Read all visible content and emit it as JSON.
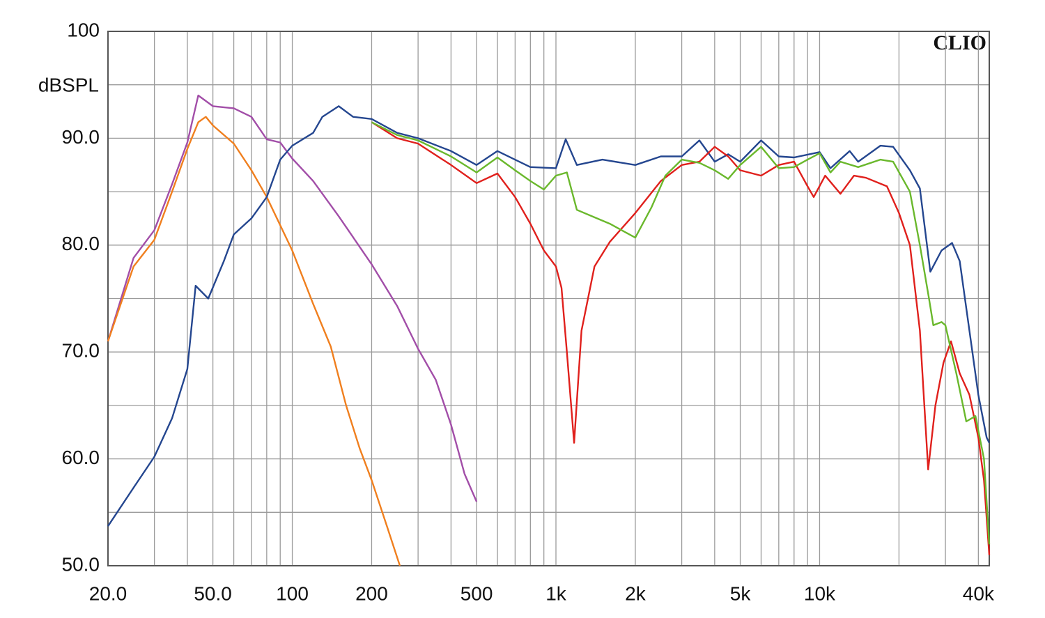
{
  "chart_data": {
    "type": "line",
    "y_label": "dBSPL",
    "watermark": "CLIO",
    "xscale": "log",
    "grid": true,
    "xlim": [
      20,
      44000
    ],
    "ylim": [
      50,
      100
    ],
    "xticks": [
      {
        "value": 20,
        "label": "20.0"
      },
      {
        "value": 50,
        "label": "50.0"
      },
      100,
      200,
      500,
      {
        "value": 1000,
        "label": "1k"
      },
      {
        "value": 2000,
        "label": "2k"
      },
      {
        "value": 5000,
        "label": "5k"
      },
      {
        "value": 10000,
        "label": "10k"
      },
      {
        "value": 40000,
        "label": "40k"
      }
    ],
    "yticks": [
      {
        "value": 50,
        "label": "50.0"
      },
      {
        "value": 60,
        "label": "60.0"
      },
      {
        "value": 70,
        "label": "70.0"
      },
      {
        "value": 80,
        "label": "80.0"
      },
      {
        "value": 90,
        "label": "90.0"
      },
      100
    ],
    "xgrid_minor": [
      30,
      40,
      60,
      70,
      80,
      90,
      300,
      400,
      600,
      700,
      800,
      900,
      3000,
      4000,
      6000,
      7000,
      8000,
      9000,
      20000,
      30000
    ],
    "ygrid_minor": [
      55,
      65,
      75,
      85,
      95
    ],
    "series": [
      {
        "color": "#a24ea8",
        "x": [
          20,
          25,
          30,
          35,
          40,
          44,
          50,
          60,
          70,
          80,
          90,
          100,
          120,
          150,
          200,
          250,
          300,
          350,
          400,
          450,
          500
        ],
        "values": [
          71,
          78.8,
          81.4,
          85.7,
          89.6,
          94.0,
          93.0,
          92.8,
          92.0,
          89.9,
          89.6,
          88.1,
          86.0,
          82.7,
          78.2,
          74.3,
          70.3,
          67.4,
          63.2,
          58.6,
          56.0
        ]
      },
      {
        "color": "#f07f1e",
        "x": [
          20,
          25,
          30,
          35,
          40,
          44,
          47,
          50,
          60,
          70,
          80,
          100,
          120,
          140,
          160,
          180,
          200,
          230,
          256
        ],
        "values": [
          71,
          78,
          80.5,
          85,
          89,
          91.5,
          92.0,
          91.2,
          89.5,
          87,
          84.5,
          79.5,
          74.5,
          70.5,
          65,
          61,
          58,
          53.5,
          50
        ]
      },
      {
        "color": "#24468f",
        "x": [
          20,
          25,
          30,
          35,
          40,
          43,
          48,
          55,
          60,
          70,
          80,
          90,
          100,
          120,
          130,
          150,
          170,
          200,
          250,
          300,
          400,
          500,
          600,
          800,
          1000,
          1089,
          1200,
          1500,
          2000,
          2500,
          3000,
          3500,
          4000,
          4500,
          5000,
          6000,
          7000,
          8000,
          10000,
          11000,
          13000,
          14000,
          17000,
          19000,
          22000,
          24000,
          26300,
          29000,
          31800,
          34000,
          37000,
          40000,
          43000,
          44000
        ],
        "values": [
          53.7,
          57.3,
          60.2,
          63.8,
          68.4,
          76.2,
          75.0,
          78.5,
          81.0,
          82.5,
          84.5,
          88,
          89.3,
          90.5,
          92,
          93.0,
          92.0,
          91.8,
          90.5,
          90.0,
          88.8,
          87.5,
          88.8,
          87.3,
          87.2,
          89.9,
          87.5,
          88.0,
          87.5,
          88.3,
          88.3,
          89.8,
          87.8,
          88.5,
          87.8,
          89.8,
          88.3,
          88.2,
          88.7,
          87.2,
          88.8,
          87.8,
          89.3,
          89.2,
          87,
          85.3,
          77.5,
          79.5,
          80.2,
          78.5,
          72,
          66,
          62,
          61.5
        ]
      },
      {
        "color": "#e0201c",
        "x": [
          200,
          250,
          300,
          400,
          500,
          600,
          700,
          800,
          900,
          1000,
          1050,
          1100,
          1172,
          1250,
          1400,
          1600,
          2000,
          2500,
          3000,
          3500,
          4000,
          4500,
          5000,
          6000,
          7000,
          8000,
          9000,
          9500,
          10500,
          12000,
          13500,
          15000,
          18000,
          20000,
          22000,
          24000,
          25800,
          27500,
          29500,
          31500,
          34000,
          37000,
          40000,
          42000,
          44000
        ],
        "values": [
          91.5,
          90.0,
          89.5,
          87.5,
          85.8,
          86.7,
          84.5,
          82,
          79.5,
          78,
          76,
          70,
          61.5,
          72,
          78,
          80.3,
          83,
          86,
          87.5,
          87.8,
          89.2,
          88.3,
          87,
          86.5,
          87.5,
          87.8,
          85.5,
          84.5,
          86.5,
          84.8,
          86.5,
          86.3,
          85.5,
          83,
          80,
          72,
          59,
          65,
          69,
          71,
          68,
          66,
          62,
          58,
          51
        ]
      },
      {
        "color": "#6ab82c",
        "x": [
          200,
          250,
          300,
          400,
          500,
          600,
          700,
          800,
          900,
          1000,
          1100,
          1200,
          1400,
          1600,
          2000,
          2300,
          2600,
          3000,
          3500,
          4000,
          4500,
          5000,
          6000,
          7000,
          8000,
          9000,
          10000,
          11000,
          12000,
          14000,
          17000,
          19000,
          22000,
          24000,
          26000,
          27000,
          29000,
          30000,
          33000,
          36000,
          39000,
          42000,
          44000
        ],
        "values": [
          91.5,
          90.3,
          89.8,
          88.3,
          86.8,
          88.2,
          87.0,
          86,
          85.2,
          86.5,
          86.8,
          83.3,
          82.6,
          82.0,
          80.7,
          83.5,
          86.5,
          88.0,
          87.7,
          87,
          86.2,
          87.5,
          89.2,
          87.2,
          87.3,
          88.0,
          88.6,
          86.8,
          87.8,
          87.3,
          88,
          87.8,
          85,
          80,
          75,
          72.5,
          72.8,
          72.5,
          68,
          63.5,
          64,
          60,
          52
        ]
      }
    ]
  }
}
